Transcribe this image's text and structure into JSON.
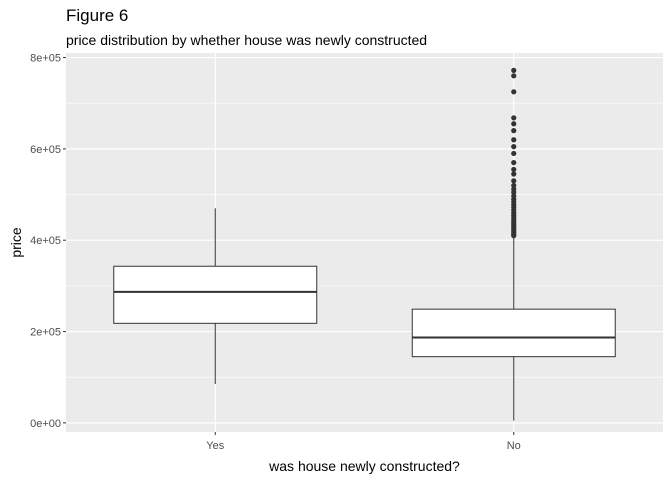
{
  "chart_data": {
    "type": "boxplot",
    "title": "Figure 6",
    "subtitle": "price distribution by whether house was newly constructed",
    "xlabel": "was house newly constructed?",
    "ylabel": "price",
    "categories": [
      "Yes",
      "No"
    ],
    "ylim": [
      -20000,
      810000
    ],
    "yticks": [
      0,
      200000,
      400000,
      600000,
      800000
    ],
    "ytick_labels": [
      "0e+00",
      "2e+05",
      "4e+05",
      "6e+05",
      "8e+05"
    ],
    "grid": true,
    "boxes": [
      {
        "category": "Yes",
        "whisker_low": 85000,
        "q1": 218000,
        "median": 287000,
        "q3": 343000,
        "whisker_high": 470000,
        "outliers": []
      },
      {
        "category": "No",
        "whisker_low": 5000,
        "q1": 145000,
        "median": 187000,
        "q3": 249000,
        "whisker_high": 408000,
        "outliers": [
          410000,
          413000,
          416000,
          420000,
          424000,
          428000,
          432000,
          436000,
          440000,
          445000,
          450000,
          455000,
          460000,
          466000,
          472000,
          478000,
          484000,
          490000,
          497000,
          505000,
          512000,
          520000,
          530000,
          545000,
          555000,
          570000,
          590000,
          605000,
          620000,
          640000,
          655000,
          668000,
          725000,
          760000,
          772000
        ]
      }
    ],
    "colors": {
      "panel": "#ebebeb",
      "grid_major": "#ffffff",
      "box_fill": "#ffffff",
      "box_line": "#333333",
      "outlier": "#333333"
    }
  }
}
